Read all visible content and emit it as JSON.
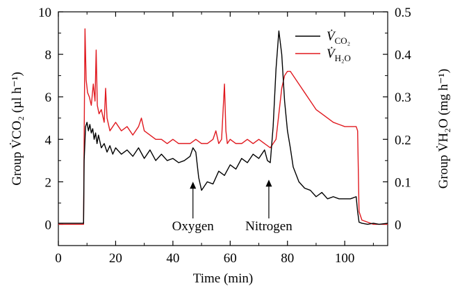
{
  "chart_data": {
    "type": "line",
    "xlabel": "Time (min)",
    "ylabel_left": "Group V̇CO₂ (µl h⁻¹)",
    "ylabel_right": "Group V̇H₂O (mg h⁻¹)",
    "xlim": [
      0,
      115
    ],
    "ylim_left": [
      -1,
      10
    ],
    "ylim_right": [
      -0.05,
      0.5
    ],
    "x_ticks": [
      0,
      20,
      40,
      60,
      80,
      100
    ],
    "y_ticks_left": [
      0,
      2,
      4,
      6,
      8,
      10
    ],
    "y_ticks_right": [
      0,
      0.1,
      0.2,
      0.3,
      0.4,
      0.5
    ],
    "y_tick_labels_left": [
      "0",
      "2",
      "4",
      "6",
      "8",
      "10"
    ],
    "y_tick_labels_right": [
      "0",
      "0.1",
      "0.2",
      "0.3",
      "0.4",
      "0.5"
    ],
    "x_tick_labels": [
      "0",
      "20",
      "40",
      "60",
      "80",
      "100"
    ],
    "legend_position": "top-right",
    "series": [
      {
        "name": "V̇CO₂",
        "axis": "left",
        "color": "#000000",
        "x": [
          0,
          8.8,
          9.0,
          9.5,
          10,
          10.5,
          11,
          11.5,
          12,
          12.5,
          13,
          13.5,
          14,
          15,
          16,
          17,
          18,
          19,
          20,
          22,
          24,
          26,
          28,
          30,
          32,
          34,
          36,
          38,
          40,
          42,
          44,
          46,
          47,
          48,
          49,
          50,
          51,
          52,
          54,
          56,
          58,
          60,
          62,
          64,
          66,
          68,
          70,
          72,
          73,
          74,
          75,
          76,
          77,
          78,
          79,
          80,
          81,
          82,
          84,
          86,
          88,
          90,
          92,
          94,
          96,
          98,
          100,
          102,
          104,
          104.5,
          105,
          106,
          108,
          110,
          112,
          115
        ],
        "values": [
          0.05,
          0.05,
          3.0,
          4.6,
          4.8,
          4.4,
          4.7,
          4.3,
          4.5,
          4.0,
          4.3,
          3.8,
          4.2,
          3.6,
          3.8,
          3.4,
          3.7,
          3.3,
          3.6,
          3.3,
          3.5,
          3.2,
          3.6,
          3.1,
          3.5,
          3.0,
          3.3,
          3.0,
          3.1,
          2.9,
          3.0,
          3.2,
          3.6,
          3.4,
          2.2,
          1.6,
          1.8,
          2.0,
          1.9,
          2.5,
          2.3,
          2.8,
          2.6,
          3.1,
          2.9,
          3.3,
          3.1,
          3.5,
          3.0,
          2.9,
          4.6,
          7.3,
          9.1,
          8.0,
          5.8,
          4.4,
          3.6,
          2.7,
          2.0,
          1.7,
          1.6,
          1.3,
          1.5,
          1.2,
          1.3,
          1.2,
          1.2,
          1.2,
          1.3,
          0.6,
          0.1,
          0.05,
          0.0,
          0.05,
          0.0,
          0.05
        ]
      },
      {
        "name": "V̇H₂O",
        "axis": "right",
        "color": "#e0191f",
        "x": [
          0,
          8.8,
          9.0,
          9.3,
          9.7,
          10.2,
          10.8,
          11.5,
          12.2,
          12.8,
          13.2,
          13.6,
          14.2,
          15,
          16,
          16.5,
          17,
          18,
          20,
          22,
          24,
          26,
          28,
          29,
          30,
          32,
          34,
          36,
          38,
          40,
          42,
          44,
          46,
          48,
          50,
          52,
          54,
          55,
          56,
          57,
          58,
          58.5,
          59,
          60,
          62,
          64,
          66,
          68,
          70,
          72,
          74,
          75,
          76,
          77,
          78,
          79,
          80,
          81,
          82,
          84,
          86,
          88,
          90,
          92,
          94,
          96,
          98,
          100,
          102,
          104,
          104.5,
          105,
          106,
          108,
          110,
          112,
          115
        ],
        "values": [
          0.0,
          0.0,
          0.2,
          0.46,
          0.34,
          0.31,
          0.3,
          0.28,
          0.33,
          0.29,
          0.41,
          0.28,
          0.26,
          0.27,
          0.24,
          0.32,
          0.25,
          0.22,
          0.24,
          0.22,
          0.23,
          0.21,
          0.23,
          0.25,
          0.22,
          0.21,
          0.2,
          0.2,
          0.19,
          0.2,
          0.19,
          0.19,
          0.19,
          0.2,
          0.19,
          0.19,
          0.2,
          0.22,
          0.19,
          0.2,
          0.33,
          0.22,
          0.19,
          0.2,
          0.19,
          0.19,
          0.2,
          0.19,
          0.2,
          0.19,
          0.18,
          0.19,
          0.2,
          0.26,
          0.32,
          0.35,
          0.36,
          0.36,
          0.35,
          0.33,
          0.31,
          0.29,
          0.27,
          0.26,
          0.25,
          0.24,
          0.235,
          0.23,
          0.23,
          0.23,
          0.22,
          0.03,
          0.01,
          0.005,
          0.0,
          0.0,
          0.0
        ]
      }
    ],
    "annotations": [
      {
        "text": "Oxygen",
        "x": 47,
        "y_left": 2.2
      },
      {
        "text": "Nitrogen",
        "x": 73.5,
        "y_left": 2.3
      }
    ]
  },
  "legend": {
    "co2_text": "V̇",
    "co2_sub": "CO₂",
    "h2o_text": "V̇",
    "h2o_sub": "H₂O"
  }
}
